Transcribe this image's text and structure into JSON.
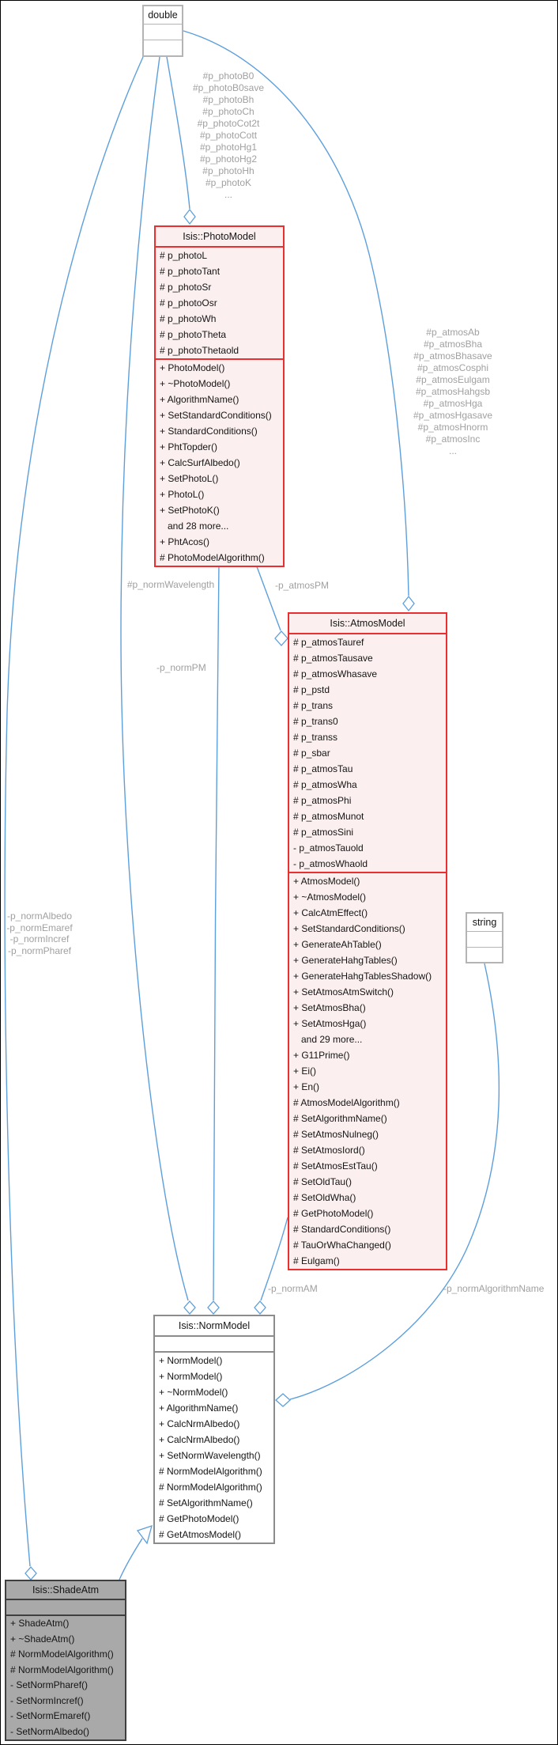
{
  "diagram": {
    "type": "uml-collaboration-graph",
    "colors": {
      "edge": "#5d9fdb",
      "truncated_box_border": "#e92f2f",
      "truncated_box_fill": "#fbf0ef",
      "plain_box_border": "#b4b4b4",
      "linked_box_border": "#8c8c8c",
      "current_class_fill": "#a9a9a9",
      "current_class_border": "#3f3f3f",
      "edge_label_text": "#a0a0a0"
    },
    "classes": {
      "double": {
        "title": "double"
      },
      "string": {
        "title": "string"
      },
      "photo_model": {
        "title": "Isis::PhotoModel",
        "attributes": [
          "# p_photoL",
          "# p_photoTant",
          "# p_photoSr",
          "# p_photoOsr",
          "# p_photoWh",
          "# p_photoTheta",
          "# p_photoThetaold"
        ],
        "methods": [
          "+ PhotoModel()",
          "+ ~PhotoModel()",
          "+ AlgorithmName()",
          "+ SetStandardConditions()",
          "+ StandardConditions()",
          "+ PhtTopder()",
          "+ CalcSurfAlbedo()",
          "+ SetPhotoL()",
          "+ PhotoL()",
          "+ SetPhotoK()",
          "   and 28 more...",
          "+ PhtAcos()",
          "# PhotoModelAlgorithm()"
        ]
      },
      "atmos_model": {
        "title": "Isis::AtmosModel",
        "attributes": [
          "# p_atmosTauref",
          "# p_atmosTausave",
          "# p_atmosWhasave",
          "# p_pstd",
          "# p_trans",
          "# p_trans0",
          "# p_transs",
          "# p_sbar",
          "# p_atmosTau",
          "# p_atmosWha",
          "# p_atmosPhi",
          "# p_atmosMunot",
          "# p_atmosSini",
          "- p_atmosTauold",
          "- p_atmosWhaold"
        ],
        "methods": [
          "+ AtmosModel()",
          "+ ~AtmosModel()",
          "+ CalcAtmEffect()",
          "+ SetStandardConditions()",
          "+ GenerateAhTable()",
          "+ GenerateHahgTables()",
          "+ GenerateHahgTablesShadow()",
          "+ SetAtmosAtmSwitch()",
          "+ SetAtmosBha()",
          "+ SetAtmosHga()",
          "   and 29 more...",
          "+ G11Prime()",
          "+ Ei()",
          "+ En()",
          "# AtmosModelAlgorithm()",
          "# SetAlgorithmName()",
          "# SetAtmosNulneg()",
          "# SetAtmosIord()",
          "# SetAtmosEstTau()",
          "# SetOldTau()",
          "# SetOldWha()",
          "# GetPhotoModel()",
          "# StandardConditions()",
          "# TauOrWhaChanged()",
          "# Eulgam()"
        ]
      },
      "norm_model": {
        "title": "Isis::NormModel",
        "attributes": [],
        "methods": [
          "+ NormModel()",
          "+ NormModel()",
          "+ ~NormModel()",
          "+ AlgorithmName()",
          "+ CalcNrmAlbedo()",
          "+ CalcNrmAlbedo()",
          "+ SetNormWavelength()",
          "# NormModelAlgorithm()",
          "# NormModelAlgorithm()",
          "# SetAlgorithmName()",
          "# GetPhotoModel()",
          "# GetAtmosModel()"
        ]
      },
      "shade_atm": {
        "title": "Isis::ShadeAtm",
        "attributes": [],
        "methods": [
          "+ ShadeAtm()",
          "+ ~ShadeAtm()",
          "# NormModelAlgorithm()",
          "# NormModelAlgorithm()",
          "- SetNormPharef()",
          "- SetNormIncref()",
          "- SetNormEmaref()",
          "- SetNormAlbedo()"
        ]
      }
    },
    "edge_labels": {
      "photo_members": [
        "#p_photoB0",
        "#p_photoB0save",
        "#p_photoBh",
        "#p_photoCh",
        "#p_photoCot2t",
        "#p_photoCott",
        "#p_photoHg1",
        "#p_photoHg2",
        "#p_photoHh",
        "#p_photoK",
        "..."
      ],
      "atmos_members": [
        "#p_atmosAb",
        "#p_atmosBha",
        "#p_atmosBhasave",
        "#p_atmosCosphi",
        "#p_atmosEulgam",
        "#p_atmosHahgsb",
        "#p_atmosHga",
        "#p_atmosHgasave",
        "#p_atmosHnorm",
        "#p_atmosInc",
        "..."
      ],
      "shade_members": [
        "-p_normAlbedo",
        "-p_normEmaref",
        "-p_normIncref",
        "-p_normPharef"
      ],
      "norm_wavelength": "#p_normWavelength",
      "atmos_pm": "-p_atmosPM",
      "norm_pm": "-p_normPM",
      "norm_am": "-p_normAM",
      "norm_algorithm_name": "-p_normAlgorithmName"
    }
  }
}
